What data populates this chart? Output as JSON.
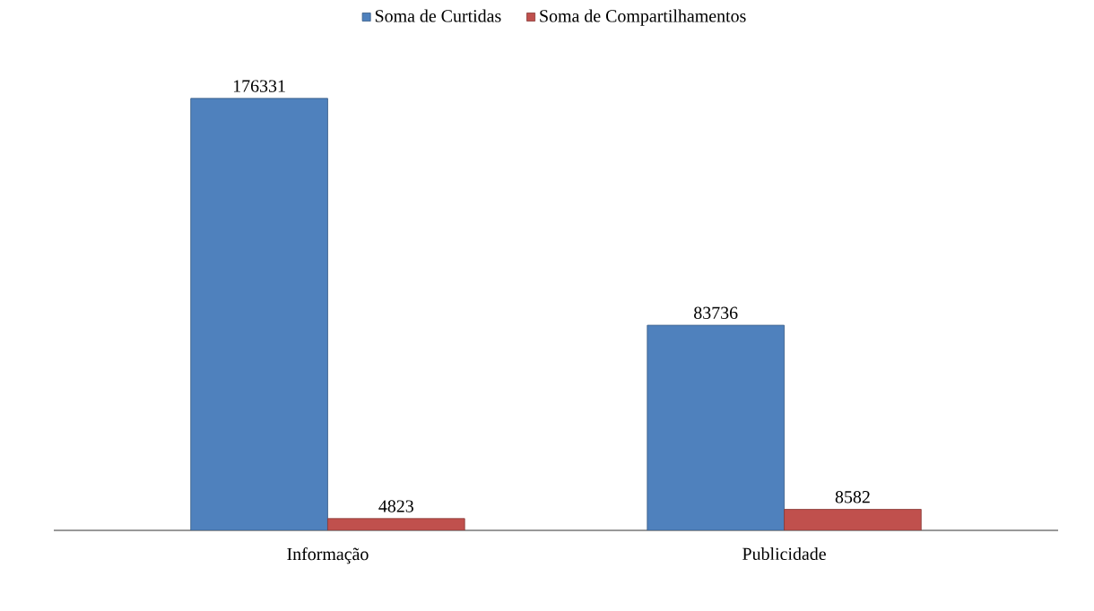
{
  "chart_data": {
    "type": "bar",
    "categories": [
      "Informação",
      "Publicidade"
    ],
    "series": [
      {
        "name": "Soma de Curtidas",
        "color": "#4f81bd",
        "values": [
          176331,
          83736
        ]
      },
      {
        "name": "Soma de Compartilhamentos",
        "color": "#c0504d",
        "values": [
          4823,
          8582
        ]
      }
    ],
    "data_labels": true,
    "legend": "top"
  }
}
